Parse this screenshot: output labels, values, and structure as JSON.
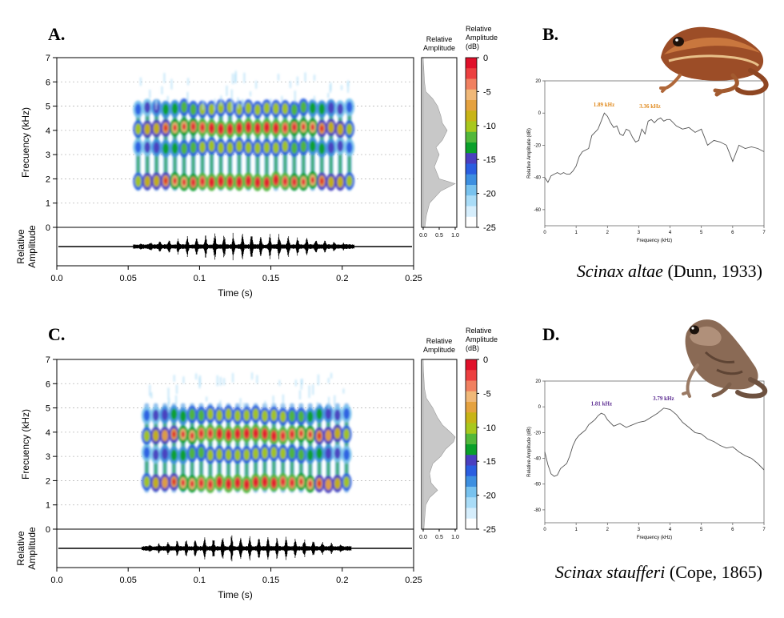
{
  "panels": {
    "A": {
      "label": "A.",
      "species_italic": "Scinax altae",
      "species_author": " (Dunn, 1933)"
    },
    "B": {
      "label": "B."
    },
    "C": {
      "label": "C."
    },
    "D": {
      "label": "D.",
      "species_italic": "Scinax staufferi",
      "species_author": " (Cope, 1865)"
    }
  },
  "colors": {
    "spectro_scale": [
      "#ffffff",
      "#d6eefc",
      "#a9dcf7",
      "#78c2ee",
      "#3d8fe0",
      "#2a5ee0",
      "#4a3fbf",
      "#0aa02a",
      "#52b83a",
      "#a8c81d",
      "#c8b416",
      "#e5a23f",
      "#f0b878",
      "#f08060",
      "#ec4040",
      "#e0102a"
    ],
    "spectrum_fill": "#c8c8c8",
    "waveform": "#000000",
    "peak_label_B": "#e08a1e",
    "peak_label_D": "#5a2a90"
  },
  "chart_data": [
    {
      "id": "A-spectrogram",
      "type": "heatmap",
      "ylabel": "Frecuency (kHz)",
      "xlabel": "Time (s)",
      "xlim": [
        0,
        0.25
      ],
      "ylim": [
        0,
        7
      ],
      "x_ticks": [
        "0.0",
        "0.05",
        "0.1",
        "0.15",
        "0.2",
        "0.25"
      ],
      "y_ticks": [
        "0",
        "1",
        "2",
        "3",
        "4",
        "5",
        "6",
        "7"
      ],
      "grid": true,
      "call_start": 0.057,
      "call_end": 0.205,
      "pulses": 24,
      "bands_khz": [
        1.9,
        3.3,
        4.1,
        4.9
      ],
      "waveform_ylabel": "Relative Amplitude",
      "colorbar": {
        "title": "Relative Amplitude (dB)",
        "ticks": [
          "0",
          "-5",
          "-10",
          "-15",
          "-20",
          "-25"
        ],
        "range": [
          -25,
          0
        ]
      },
      "side_spectrum": {
        "title": "Relative Amplitude",
        "x_ticks": [
          "0.0",
          "0.5",
          "1.0"
        ],
        "freq_khz": [
          0.0,
          0.5,
          1.0,
          1.5,
          1.8,
          2.0,
          2.5,
          3.0,
          3.3,
          3.6,
          4.0,
          4.3,
          4.6,
          5.0,
          5.3,
          5.6,
          6.0,
          6.5,
          7.0
        ],
        "amplitude": [
          0.05,
          0.1,
          0.2,
          0.55,
          1.0,
          0.5,
          0.35,
          0.5,
          0.4,
          0.6,
          0.75,
          0.6,
          0.55,
          0.45,
          0.3,
          0.08,
          0.04,
          0.02,
          0.0
        ]
      }
    },
    {
      "id": "B-power-spectrum",
      "type": "line",
      "xlabel": "Frequency (kHz)",
      "ylabel": "Relative Amplitude (dB)",
      "xlim": [
        0,
        7
      ],
      "ylim": [
        -70,
        20
      ],
      "x_ticks": [
        "0",
        "1",
        "2",
        "3",
        "4",
        "5",
        "6",
        "7"
      ],
      "y_ticks": [
        "20",
        "0",
        "-20",
        "-40",
        "-60"
      ],
      "annotations": [
        {
          "text": "1.89 kHz",
          "x": 1.89,
          "y": 0
        },
        {
          "text": "3.36 kHz",
          "x": 3.36,
          "y": -1
        }
      ],
      "x": [
        0,
        0.1,
        0.2,
        0.3,
        0.4,
        0.5,
        0.6,
        0.7,
        0.8,
        0.9,
        1.0,
        1.1,
        1.2,
        1.3,
        1.4,
        1.5,
        1.6,
        1.7,
        1.8,
        1.9,
        2.0,
        2.1,
        2.2,
        2.3,
        2.4,
        2.5,
        2.6,
        2.7,
        2.8,
        2.9,
        3.0,
        3.1,
        3.2,
        3.3,
        3.4,
        3.5,
        3.6,
        3.7,
        3.8,
        3.9,
        4.0,
        4.2,
        4.4,
        4.6,
        4.8,
        5.0,
        5.2,
        5.4,
        5.6,
        5.8,
        6.0,
        6.2,
        6.4,
        6.6,
        6.8,
        7.0
      ],
      "y": [
        -40,
        -43,
        -39,
        -38,
        -37,
        -38,
        -37,
        -38,
        -38,
        -36,
        -33,
        -27,
        -24,
        -23,
        -22,
        -14,
        -12,
        -10,
        -5,
        0,
        -2,
        -6,
        -9,
        -8,
        -13,
        -14,
        -10,
        -11,
        -15,
        -18,
        -17,
        -10,
        -13,
        -5,
        -4,
        -6,
        -4,
        -3,
        -5,
        -4,
        -4,
        -8,
        -10,
        -9,
        -12,
        -10,
        -20,
        -17,
        -18,
        -20,
        -30,
        -20,
        -22,
        -21,
        -22,
        -24
      ]
    },
    {
      "id": "C-spectrogram",
      "type": "heatmap",
      "ylabel": "Frecuency (kHz)",
      "xlabel": "Time (s)",
      "xlim": [
        0,
        0.25
      ],
      "ylim": [
        0,
        7
      ],
      "x_ticks": [
        "0.0",
        "0.05",
        "0.1",
        "0.15",
        "0.2",
        "0.25"
      ],
      "y_ticks": [
        "0",
        "1",
        "2",
        "3",
        "4",
        "5",
        "6",
        "7"
      ],
      "grid": true,
      "call_start": 0.063,
      "call_end": 0.203,
      "pulses": 23,
      "bands_khz": [
        1.9,
        3.1,
        3.9,
        4.7
      ],
      "waveform_ylabel": "Relative Amplitude",
      "colorbar": {
        "title": "Relative Amplitude (dB)",
        "ticks": [
          "0",
          "-5",
          "-10",
          "-15",
          "-20",
          "-25"
        ],
        "range": [
          -25,
          0
        ]
      },
      "side_spectrum": {
        "title": "Relative Amplitude",
        "x_ticks": [
          "0.0",
          "0.5",
          "1.0"
        ],
        "freq_khz": [
          0.0,
          0.5,
          1.0,
          1.3,
          1.6,
          1.9,
          2.3,
          2.7,
          3.0,
          3.3,
          3.6,
          3.8,
          4.0,
          4.3,
          4.6,
          5.0,
          5.4,
          5.8,
          6.5,
          7.0
        ],
        "amplitude": [
          0.02,
          0.05,
          0.08,
          0.2,
          0.45,
          0.25,
          0.2,
          0.3,
          0.55,
          0.7,
          0.95,
          1.0,
          0.85,
          0.6,
          0.45,
          0.3,
          0.1,
          0.04,
          0.01,
          0.0
        ]
      }
    },
    {
      "id": "D-power-spectrum",
      "type": "line",
      "xlabel": "Frequency (kHz)",
      "ylabel": "Relative Amplitude (dB)",
      "xlim": [
        0,
        7
      ],
      "ylim": [
        -90,
        20
      ],
      "x_ticks": [
        "0",
        "1",
        "2",
        "3",
        "4",
        "5",
        "6",
        "7"
      ],
      "y_ticks": [
        "20",
        "0",
        "-20",
        "-40",
        "-60",
        "-80"
      ],
      "annotations": [
        {
          "text": "1.81 kHz",
          "x": 1.81,
          "y": -4
        },
        {
          "text": "3.79 kHz",
          "x": 3.79,
          "y": 0
        }
      ],
      "x": [
        0,
        0.1,
        0.2,
        0.3,
        0.4,
        0.5,
        0.6,
        0.7,
        0.8,
        0.9,
        1.0,
        1.1,
        1.2,
        1.3,
        1.4,
        1.5,
        1.6,
        1.7,
        1.8,
        1.9,
        2.0,
        2.2,
        2.4,
        2.6,
        2.8,
        3.0,
        3.2,
        3.4,
        3.6,
        3.8,
        4.0,
        4.2,
        4.4,
        4.6,
        4.8,
        5.0,
        5.2,
        5.4,
        5.6,
        5.8,
        6.0,
        6.2,
        6.4,
        6.6,
        6.8,
        7.0
      ],
      "y": [
        -35,
        -45,
        -52,
        -54,
        -53,
        -48,
        -46,
        -44,
        -38,
        -30,
        -25,
        -22,
        -20,
        -18,
        -14,
        -12,
        -10,
        -7,
        -5,
        -6,
        -10,
        -15,
        -13,
        -16,
        -14,
        -12,
        -11,
        -8,
        -5,
        -1,
        -2,
        -6,
        -12,
        -16,
        -20,
        -21,
        -25,
        -27,
        -30,
        -32,
        -31,
        -35,
        -38,
        -40,
        -44,
        -49
      ]
    }
  ]
}
